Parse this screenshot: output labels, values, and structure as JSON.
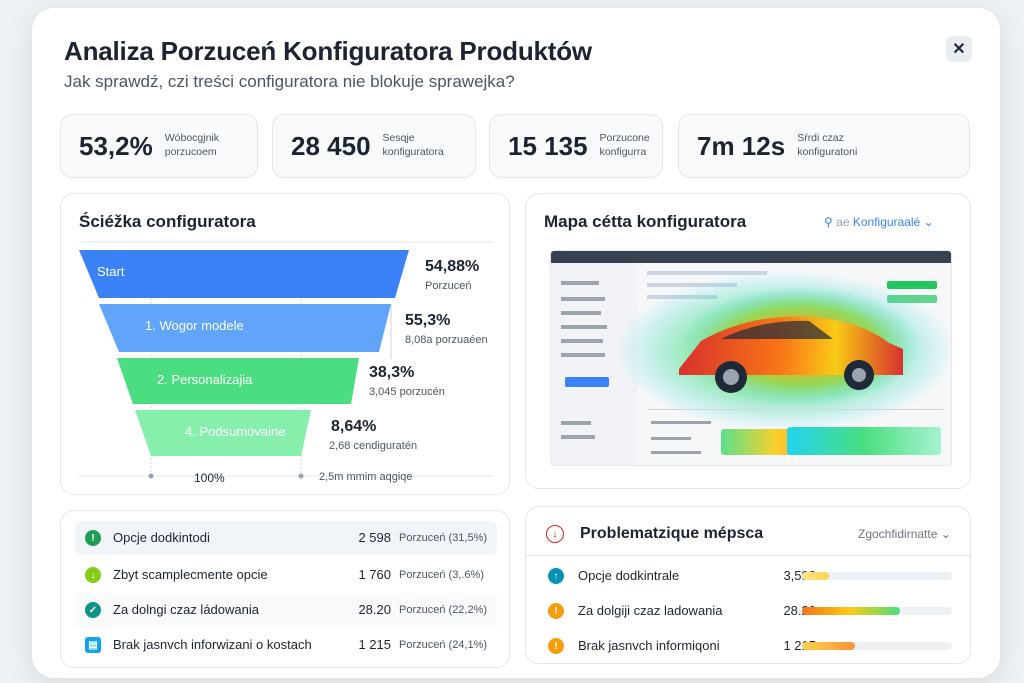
{
  "header": {
    "title": "Analiza Porzuceń Konfiguratora Produktów",
    "subtitle": "Jak sprawdź, czi treści configuratora nie blokuje sprawejka?",
    "close_label": "✕"
  },
  "kpis": [
    {
      "value": "53,2%",
      "label": "Wóbocgjnik porzucoem"
    },
    {
      "value": "28 450",
      "label": "Sesqje konfiguratora"
    },
    {
      "value": "15 135",
      "label": "Porzucone konfigurra"
    },
    {
      "value": "7m 12s",
      "label": "Sŕrdi czaz konfiguratoni"
    }
  ],
  "funnel": {
    "title": "Ściéžka configuratora",
    "stages": [
      {
        "label": "Start",
        "pct": "54,88%",
        "sub": "Porzuceń",
        "color": "#3b82f6"
      },
      {
        "label": "1. Wogor modele",
        "pct": "55,3%",
        "sub": "8,08a porzuaéen",
        "color": "#5aa2ee"
      },
      {
        "label": "2. Personalizajia",
        "pct": "38,3%",
        "sub": "3,045 porzucén",
        "color": "#4ccc6a"
      },
      {
        "label": "4. Podsumovaine",
        "pct": "8,64%",
        "sub": "2,68 cendiguratén",
        "color": "#7ddb82"
      }
    ],
    "footer_left": "100%",
    "footer_right": "2,5m mmim aqgiqe"
  },
  "heatmap": {
    "title": "Mapa cétta konfiguratora",
    "dropdown_label": "Konfiguraalé",
    "dropdown_prefix": "ae"
  },
  "reasons_left": [
    {
      "label": "Opcje dodkintodi",
      "count": "2 598",
      "porz": "Porzuceń (31,5%)",
      "icon_color": "#1f9d55",
      "icon": "!"
    },
    {
      "label": "Zbyt scamplecmente opcie",
      "count": "1 760",
      "porz": "Porzuceń (3,.6%)",
      "icon_color": "#84cc16",
      "icon": "↓"
    },
    {
      "label": "Za dolngi czaz ládowania",
      "count": "28.20",
      "porz": "Porzuceń (22,2%)",
      "icon_color": "#0d9488",
      "icon": "✓"
    },
    {
      "label": "Brak jasnvch inforwizani o kostach",
      "count": "1 215",
      "porz": "Porzuceń (24,1%)",
      "icon_color": "#0ea5e9",
      "icon": "▤"
    }
  ],
  "problems": {
    "title": "Problematzique mépsca",
    "dropdown_label": "Zgochfidirnatte",
    "items": [
      {
        "label": "Opcje dodkintrale",
        "count": "3,598",
        "progress": 0.18,
        "icon_color": "#0891b2",
        "icon": "↑"
      },
      {
        "label": "Za dolgiji czaz ladowania",
        "count": "28.20",
        "progress": 0.65,
        "icon_color": "#f59e0b",
        "icon": "!"
      },
      {
        "label": "Brak jasnvch informiqoni",
        "count": "1 215",
        "progress": 0.35,
        "icon_color": "#f59e0b",
        "icon": "!"
      }
    ]
  },
  "colors": {
    "accent": "#3b82f6",
    "problem_icon": "#dc2626"
  }
}
